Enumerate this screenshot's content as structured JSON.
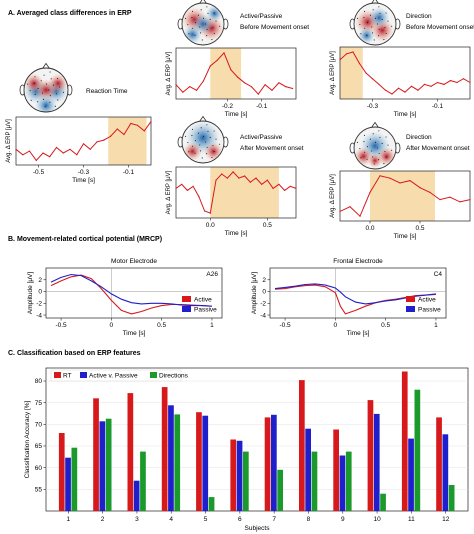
{
  "section_titles": {
    "a": "A. Averaged class differences in ERP",
    "b": "B. Movement-related cortical potential (MRCP)",
    "c": "C. Classification based on ERP features"
  },
  "colors": {
    "red": "#d7191c",
    "blue": "#1f1fcc",
    "green": "#1a9a2a",
    "highlight": "#f7dcae",
    "scalp_pos": "#c0392b",
    "scalp_neg": "#2f5fb3"
  },
  "chart_data": [
    {
      "id": "rt",
      "type": "line",
      "scalp_label": "Reaction Time",
      "ylabel": "Avg. Δ ERP [μV]",
      "xlabel": "Time [s]",
      "xlim": [
        -0.6,
        0.0
      ],
      "xticks": [
        "-0.5",
        "-0.3",
        "-0.1"
      ],
      "xtick_values": [
        -0.5,
        -0.3,
        -0.1
      ],
      "highlight": [
        -0.19,
        -0.02
      ],
      "x": [
        -0.6,
        -0.57,
        -0.54,
        -0.51,
        -0.48,
        -0.45,
        -0.42,
        -0.39,
        -0.36,
        -0.33,
        -0.3,
        -0.27,
        -0.24,
        -0.21,
        -0.18,
        -0.15,
        -0.12,
        -0.09,
        -0.06,
        -0.03,
        0.0
      ],
      "values": [
        0.2,
        0.05,
        0.15,
        -0.1,
        0.1,
        0.0,
        0.25,
        0.1,
        0.2,
        0.05,
        0.35,
        0.2,
        0.4,
        0.45,
        0.55,
        0.75,
        0.6,
        0.9,
        0.85,
        0.7,
        0.95
      ]
    },
    {
      "id": "ap_before",
      "type": "line",
      "scalp_label_lines": [
        "Active/Passive",
        "Before Movement onset"
      ],
      "ylabel": "Avg. Δ ERP [μV]",
      "xlabel": "Time [s]",
      "xlim": [
        -0.35,
        0.0
      ],
      "xticks": [
        "-0.2",
        "-0.1"
      ],
      "xtick_values": [
        -0.2,
        -0.1
      ],
      "highlight": [
        -0.25,
        -0.16
      ],
      "x": [
        -0.35,
        -0.33,
        -0.31,
        -0.29,
        -0.27,
        -0.25,
        -0.23,
        -0.21,
        -0.19,
        -0.17,
        -0.15,
        -0.13,
        -0.11,
        -0.09,
        -0.07,
        -0.05,
        -0.03,
        -0.01
      ],
      "values": [
        0.1,
        -0.1,
        0.05,
        -0.05,
        0.2,
        0.6,
        0.75,
        0.95,
        0.5,
        0.3,
        0.15,
        0.05,
        -0.15,
        0.1,
        -0.05,
        0.15,
        0.05,
        0.0
      ]
    },
    {
      "id": "dir_before",
      "type": "line",
      "scalp_label_lines": [
        "Direction",
        "Before Movement onset"
      ],
      "ylabel": "Avg. Δ ERP [μV]",
      "xlabel": "Time [s]",
      "xlim": [
        -0.4,
        0.0
      ],
      "xticks": [
        "-0.3",
        "-0.1"
      ],
      "xtick_values": [
        -0.3,
        -0.1
      ],
      "highlight": [
        -0.4,
        -0.33
      ],
      "x": [
        -0.4,
        -0.38,
        -0.36,
        -0.34,
        -0.32,
        -0.3,
        -0.28,
        -0.26,
        -0.24,
        -0.22,
        -0.2,
        -0.18,
        -0.16,
        -0.14,
        -0.12,
        -0.1,
        -0.08,
        -0.06,
        -0.04,
        -0.02,
        0.0
      ],
      "values": [
        0.7,
        0.85,
        0.9,
        0.6,
        0.35,
        0.2,
        0.05,
        -0.1,
        -0.2,
        -0.05,
        -0.15,
        0.0,
        -0.1,
        0.05,
        0.0,
        0.1,
        0.05,
        0.15,
        0.1,
        0.2,
        0.1
      ]
    },
    {
      "id": "ap_after",
      "type": "line",
      "scalp_label_lines": [
        "Active/Passive",
        "After Movement onset"
      ],
      "ylabel": "Avg. Δ ERP [μV]",
      "xlabel": "Time [s]",
      "xlim": [
        -0.3,
        0.75
      ],
      "xticks": [
        "0.0",
        "0.5"
      ],
      "xtick_values": [
        0.0,
        0.5
      ],
      "highlight": [
        0.0,
        0.6
      ],
      "x": [
        -0.3,
        -0.25,
        -0.2,
        -0.15,
        -0.1,
        -0.05,
        0.0,
        0.05,
        0.1,
        0.15,
        0.2,
        0.25,
        0.3,
        0.35,
        0.4,
        0.45,
        0.5,
        0.55,
        0.6,
        0.65,
        0.7,
        0.75
      ],
      "values": [
        0.1,
        0.2,
        0.05,
        0.15,
        -0.1,
        -0.45,
        -0.5,
        0.3,
        0.45,
        0.35,
        0.5,
        0.35,
        0.4,
        0.25,
        0.35,
        0.2,
        0.3,
        0.1,
        0.2,
        0.05,
        0.15,
        0.1
      ]
    },
    {
      "id": "dir_after",
      "type": "line",
      "scalp_label_lines": [
        "Direction",
        "After Movement onset"
      ],
      "ylabel": "Avg. Δ ERP [μV]",
      "xlabel": "Time [s]",
      "xlim": [
        -0.3,
        1.0
      ],
      "xticks": [
        "0.0",
        "0.5"
      ],
      "xtick_values": [
        0.0,
        0.5
      ],
      "highlight": [
        0.0,
        0.65
      ],
      "x": [
        -0.3,
        -0.2,
        -0.1,
        0.0,
        0.1,
        0.2,
        0.3,
        0.4,
        0.5,
        0.6,
        0.7,
        0.8,
        0.9,
        1.0
      ],
      "values": [
        -0.2,
        -0.1,
        -0.3,
        0.2,
        0.55,
        0.5,
        0.4,
        0.45,
        0.3,
        0.2,
        0.05,
        0.1,
        0.0,
        0.05
      ]
    },
    {
      "id": "mrcp_motor",
      "type": "line",
      "title": "Motor Electrode",
      "electrode": "A26",
      "ylabel": "Amplitude [μV]",
      "xlabel": "Time [s]",
      "xlim": [
        -0.65,
        1.1
      ],
      "ylim": [
        -4.5,
        4.0
      ],
      "xticks": [
        "-0.5",
        "0",
        "0.5",
        "1"
      ],
      "xtick_values": [
        -0.5,
        0,
        0.5,
        1
      ],
      "yticks": [
        "2",
        "0",
        "-2",
        "-4"
      ],
      "ytick_values": [
        2,
        0,
        -2,
        -4
      ],
      "legend": [
        "Active",
        "Passive"
      ],
      "x": [
        -0.6,
        -0.5,
        -0.4,
        -0.3,
        -0.2,
        -0.1,
        0.0,
        0.1,
        0.2,
        0.3,
        0.4,
        0.5,
        0.6,
        0.7,
        0.8,
        0.9,
        1.0
      ],
      "series": [
        {
          "name": "Active",
          "values": [
            1.0,
            1.8,
            2.5,
            2.8,
            2.2,
            0.5,
            -1.5,
            -3.2,
            -3.8,
            -3.4,
            -2.8,
            -2.4,
            -2.2,
            -2.2,
            -2.3,
            -2.4,
            -2.5
          ]
        },
        {
          "name": "Passive",
          "values": [
            1.6,
            2.4,
            2.9,
            2.7,
            1.8,
            0.8,
            -0.4,
            -1.3,
            -1.9,
            -2.1,
            -2.0,
            -2.0,
            -2.1,
            -2.3,
            -2.4,
            -2.4,
            -2.5
          ]
        }
      ]
    },
    {
      "id": "mrcp_frontal",
      "type": "line",
      "title": "Frontal Electrode",
      "electrode": "C4",
      "ylabel": "Amplitude [μV]",
      "xlabel": "Time [s]",
      "xlim": [
        -0.65,
        1.1
      ],
      "ylim": [
        -4.5,
        4.0
      ],
      "xticks": [
        "-0.5",
        "0",
        "0.5",
        "1"
      ],
      "xtick_values": [
        -0.5,
        0,
        0.5,
        1
      ],
      "yticks": [
        "2",
        "0",
        "-2",
        "-4"
      ],
      "ytick_values": [
        2,
        0,
        -2,
        -4
      ],
      "legend": [
        "Active",
        "Passive"
      ],
      "x": [
        -0.6,
        -0.5,
        -0.4,
        -0.3,
        -0.2,
        -0.1,
        0.0,
        0.05,
        0.1,
        0.2,
        0.3,
        0.4,
        0.5,
        0.6,
        0.7,
        0.8,
        0.9,
        1.0
      ],
      "series": [
        {
          "name": "Active",
          "values": [
            0.4,
            0.5,
            0.8,
            1.0,
            1.1,
            0.8,
            -0.2,
            -2.5,
            -3.8,
            -3.2,
            -2.5,
            -1.9,
            -1.5,
            -1.3,
            -1.0,
            -0.7,
            -0.6,
            -0.5
          ]
        },
        {
          "name": "Passive",
          "values": [
            0.5,
            0.7,
            0.9,
            1.2,
            1.3,
            1.1,
            0.6,
            -0.1,
            -0.9,
            -1.8,
            -2.1,
            -1.9,
            -1.6,
            -1.4,
            -1.1,
            -0.8,
            -0.6,
            -0.4
          ]
        }
      ]
    },
    {
      "id": "classification",
      "type": "bar",
      "ylabel": "Classification Accuracy [%]",
      "xlabel": "Subjects",
      "ylim": [
        50,
        83
      ],
      "yticks": [
        "55",
        "60",
        "65",
        "70",
        "75",
        "80"
      ],
      "ytick_values": [
        55,
        60,
        65,
        70,
        75,
        80
      ],
      "categories": [
        "1",
        "2",
        "3",
        "4",
        "5",
        "6",
        "7",
        "8",
        "9",
        "10",
        "11",
        "12"
      ],
      "series": [
        {
          "name": "RT",
          "values": [
            68.0,
            76.0,
            77.2,
            78.6,
            72.8,
            66.5,
            71.6,
            80.2,
            68.8,
            75.6,
            82.2,
            71.6
          ]
        },
        {
          "name": "Active v. Passive",
          "values": [
            62.3,
            70.7,
            57.0,
            74.4,
            72.0,
            66.2,
            72.2,
            69.0,
            62.8,
            72.4,
            66.7,
            67.7
          ]
        },
        {
          "name": "Directions",
          "values": [
            64.6,
            71.3,
            63.7,
            72.3,
            53.2,
            63.7,
            59.5,
            63.7,
            63.7,
            54.0,
            78.0,
            56.0
          ]
        }
      ]
    }
  ]
}
